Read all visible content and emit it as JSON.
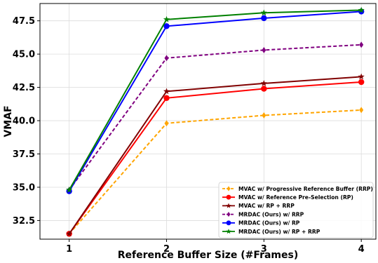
{
  "chart_data": {
    "type": "line",
    "title": "",
    "xlabel": "Reference Buffer Size (#Frames)",
    "ylabel": "VMAF",
    "x": [
      1,
      2,
      3,
      4
    ],
    "xticks": [
      "1",
      "2",
      "3",
      "4"
    ],
    "xlim": [
      0.7,
      4.15
    ],
    "ylim": [
      31.1,
      48.8
    ],
    "yticks": [
      "32.5",
      "35.0",
      "37.5",
      "40.0",
      "42.5",
      "45.0",
      "47.5"
    ],
    "grid": true,
    "legend_position": "lower-right",
    "series": [
      {
        "name": "MVAC w/ Progressive Reference Buffer (RRP)",
        "values": [
          31.5,
          39.8,
          40.4,
          40.8
        ],
        "color": "#ffa500",
        "dash": true,
        "marker": "diamond"
      },
      {
        "name": "MVAC w/ Reference Pre-Selection (RP)",
        "values": [
          31.5,
          41.7,
          42.4,
          42.9
        ],
        "color": "#ff0000",
        "dash": false,
        "marker": "circle"
      },
      {
        "name": "MVAC w/ RP + RRP",
        "values": [
          31.5,
          42.2,
          42.8,
          43.3
        ],
        "color": "#800000",
        "dash": false,
        "marker": "star"
      },
      {
        "name": "MRDAC (Ours) w/ RRP",
        "values": [
          34.8,
          44.7,
          45.3,
          45.7
        ],
        "color": "#800080",
        "dash": true,
        "marker": "diamond"
      },
      {
        "name": "MRDAC (Ours) w/ RP",
        "values": [
          34.7,
          47.1,
          47.7,
          48.2
        ],
        "color": "#0000ff",
        "dash": false,
        "marker": "circle"
      },
      {
        "name": "MRDAC (Ours) w/ RP + RRP",
        "values": [
          34.8,
          47.6,
          48.1,
          48.3
        ],
        "color": "#008000",
        "dash": false,
        "marker": "star"
      }
    ]
  }
}
